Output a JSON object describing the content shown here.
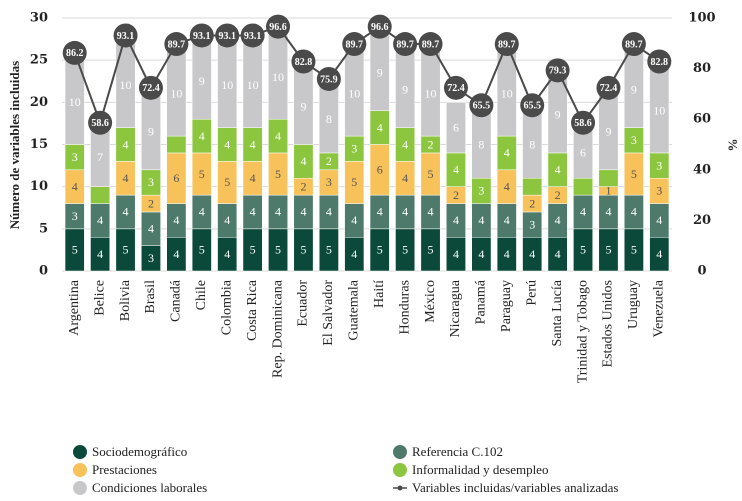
{
  "chart_data": {
    "type": "stacked_bar_line",
    "ylabel": "Número de variables incluidas",
    "y2label": "%",
    "categories": [
      "Argentina",
      "Belice",
      "Bolivia",
      "Brasil",
      "Canadá",
      "Chile",
      "Colombia",
      "Costa Rica",
      "Rep. Dominicana",
      "Ecuador",
      "El Salvador",
      "Guatemala",
      "Haití",
      "Honduras",
      "México",
      "Nicaragua",
      "Panamá",
      "Paraguay",
      "Perú",
      "Santa Lucía",
      "Trinidad y Tobago",
      "Estados Unidos",
      "Uruguay",
      "Venezuela"
    ],
    "series": [
      {
        "name": "Sociodemográfico",
        "color": "#0b4a3a",
        "values": [
          5,
          4,
          5,
          3,
          4,
          5,
          4,
          5,
          5,
          5,
          5,
          4,
          5,
          5,
          5,
          4,
          4,
          4,
          4,
          4,
          5,
          5,
          5,
          4
        ]
      },
      {
        "name": "Referencia C.102",
        "color": "#4e7a6c",
        "values": [
          3,
          4,
          4,
          4,
          4,
          4,
          4,
          4,
          4,
          4,
          4,
          4,
          4,
          4,
          4,
          4,
          4,
          4,
          3,
          4,
          4,
          4,
          4,
          4
        ]
      },
      {
        "name": "Prestaciones",
        "color": "#f8c25a",
        "values": [
          4,
          0,
          4,
          2,
          6,
          5,
          5,
          4,
          5,
          2,
          3,
          5,
          6,
          4,
          5,
          2,
          0,
          4,
          2,
          2,
          0,
          1,
          5,
          3
        ]
      },
      {
        "name": "Informalidad y desempleo",
        "color": "#8cc63f",
        "values": [
          3,
          2,
          4,
          3,
          2,
          4,
          4,
          4,
          4,
          4,
          2,
          3,
          4,
          4,
          2,
          4,
          3,
          4,
          2,
          4,
          2,
          2,
          3,
          3
        ],
        "value_labels": [
          3,
          null,
          4,
          3,
          null,
          4,
          4,
          4,
          4,
          4,
          2,
          3,
          4,
          4,
          2,
          4,
          3,
          4,
          null,
          4,
          null,
          null,
          3,
          3
        ]
      },
      {
        "name": "Condiciones laborales",
        "color": "#c8c8ca",
        "values": [
          10,
          7,
          10,
          9,
          10,
          9,
          10,
          10,
          10,
          9,
          8,
          10,
          9,
          9,
          10,
          6,
          8,
          10,
          8,
          9,
          6,
          9,
          9,
          10
        ]
      },
      {
        "name": "Variables incluidas/variables analizadas",
        "color": "#4a4a4a",
        "axis": "y2",
        "type": "line",
        "values": [
          86.2,
          58.6,
          93.1,
          72.4,
          89.7,
          93.1,
          93.1,
          93.1,
          96.6,
          82.8,
          75.9,
          89.7,
          96.6,
          89.7,
          89.7,
          72.4,
          65.5,
          89.7,
          65.5,
          79.3,
          58.6,
          72.4,
          89.7,
          82.8
        ]
      }
    ],
    "ylim": [
      0,
      30
    ],
    "yticks": [
      0,
      5,
      10,
      15,
      20,
      25,
      30
    ],
    "y2lim": [
      0,
      100
    ],
    "y2ticks": [
      0,
      20,
      40,
      60,
      80,
      100
    ],
    "grid": true
  }
}
